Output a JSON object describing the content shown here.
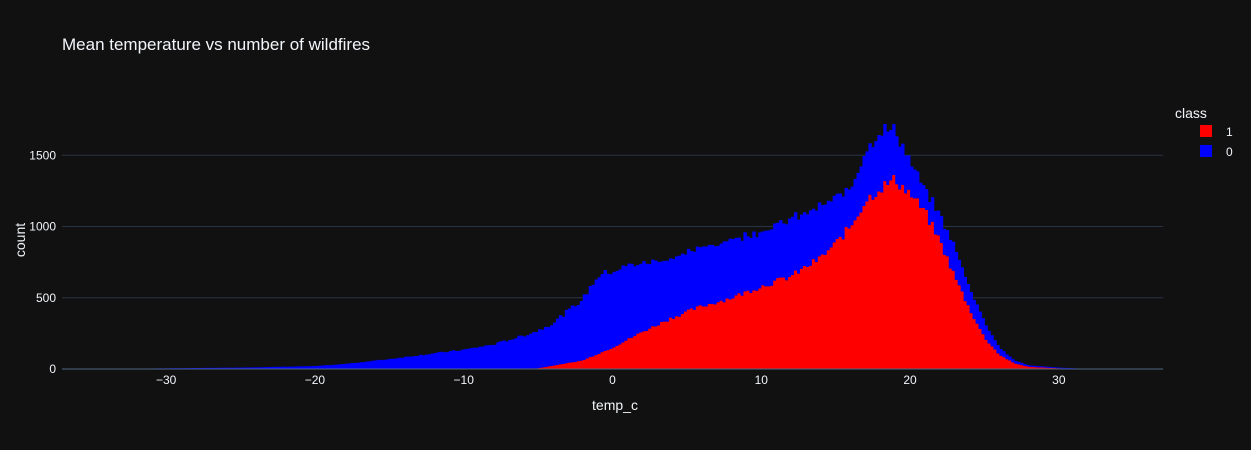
{
  "chart_data": {
    "type": "bar",
    "barmode": "stacked",
    "title": "Mean temperature vs number of wildfires",
    "xlabel": "temp_c",
    "ylabel": "count",
    "xlim": [
      -37,
      37
    ],
    "ylim": [
      0,
      2000
    ],
    "x_ticks": [
      -30,
      -20,
      -10,
      0,
      10,
      20,
      30
    ],
    "y_ticks": [
      0,
      500,
      1000,
      1500
    ],
    "grid": true,
    "legend": {
      "title": "class",
      "placement": "top-right"
    },
    "bin_width": 0.2,
    "series": [
      {
        "name": "1",
        "color": "#ff0000",
        "points": [
          [
            -10,
            0
          ],
          [
            -5,
            5
          ],
          [
            -2,
            60
          ],
          [
            0,
            150
          ],
          [
            2,
            260
          ],
          [
            4,
            360
          ],
          [
            6,
            440
          ],
          [
            8,
            500
          ],
          [
            10,
            580
          ],
          [
            12,
            650
          ],
          [
            14,
            780
          ],
          [
            15,
            880
          ],
          [
            16,
            1000
          ],
          [
            17,
            1180
          ],
          [
            18,
            1270
          ],
          [
            19,
            1330
          ],
          [
            20,
            1230
          ],
          [
            21,
            1100
          ],
          [
            22,
            900
          ],
          [
            23,
            650
          ],
          [
            24,
            420
          ],
          [
            25,
            220
          ],
          [
            26,
            100
          ],
          [
            27,
            40
          ],
          [
            28,
            15
          ],
          [
            30,
            5
          ],
          [
            32,
            0
          ]
        ]
      },
      {
        "name": "0",
        "color": "#0000ff",
        "points": [
          [
            -34,
            0
          ],
          [
            -30,
            5
          ],
          [
            -25,
            10
          ],
          [
            -20,
            20
          ],
          [
            -18,
            35
          ],
          [
            -15,
            70
          ],
          [
            -12,
            110
          ],
          [
            -10,
            135
          ],
          [
            -8,
            170
          ],
          [
            -6,
            230
          ],
          [
            -4,
            300
          ],
          [
            -2,
            430
          ],
          [
            -1,
            550
          ],
          [
            0,
            540
          ],
          [
            1,
            520
          ],
          [
            2,
            480
          ],
          [
            4,
            420
          ],
          [
            6,
            410
          ],
          [
            8,
            410
          ],
          [
            10,
            390
          ],
          [
            12,
            400
          ],
          [
            14,
            360
          ],
          [
            16,
            270
          ],
          [
            17,
            360
          ],
          [
            18,
            400
          ],
          [
            19,
            350
          ],
          [
            20,
            220
          ],
          [
            21,
            150
          ],
          [
            22,
            180
          ],
          [
            23,
            200
          ],
          [
            24,
            150
          ],
          [
            25,
            110
          ],
          [
            26,
            50
          ],
          [
            27,
            20
          ],
          [
            28,
            10
          ],
          [
            30,
            5
          ],
          [
            32,
            0
          ]
        ]
      }
    ]
  }
}
